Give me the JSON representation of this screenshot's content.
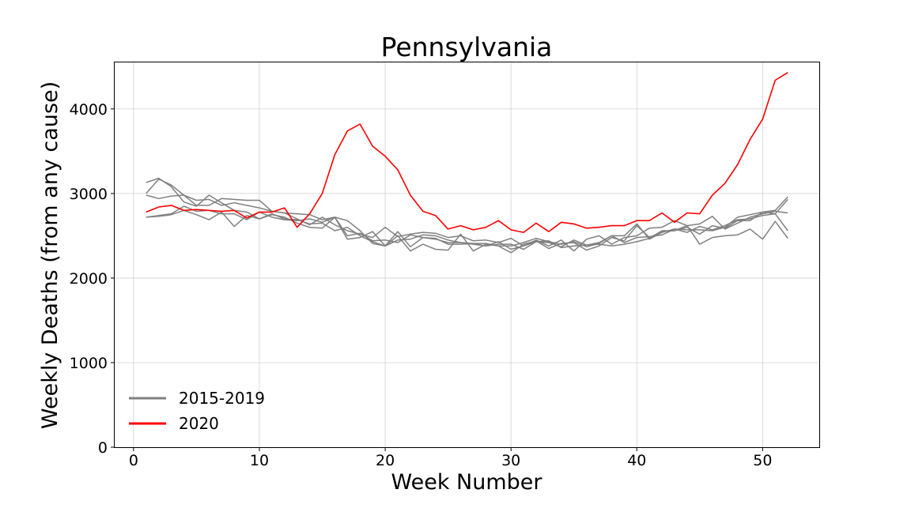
{
  "chart_data": {
    "type": "line",
    "title": "Pennsylvania",
    "xlabel": "Week Number",
    "ylabel": "Weekly Deaths (from any cause)",
    "xlim": [
      -1.5,
      54.5
    ],
    "ylim": [
      0,
      4550
    ],
    "xticks": [
      0,
      10,
      20,
      30,
      40,
      50
    ],
    "yticks": [
      0,
      1000,
      2000,
      3000,
      4000
    ],
    "grid": true,
    "legend_position": "lower-left",
    "legend": [
      {
        "label": "2015-2019",
        "color": "#808080"
      },
      {
        "label": "2020",
        "color": "#ff0000"
      }
    ],
    "weeks": [
      1,
      2,
      3,
      4,
      5,
      6,
      7,
      8,
      9,
      10,
      11,
      12,
      13,
      14,
      15,
      16,
      17,
      18,
      19,
      20,
      21,
      22,
      23,
      24,
      25,
      26,
      27,
      28,
      29,
      30,
      31,
      32,
      33,
      34,
      35,
      36,
      37,
      38,
      39,
      40,
      41,
      42,
      43,
      44,
      45,
      46,
      47,
      48,
      49,
      50,
      51,
      52
    ],
    "series": [
      {
        "legend_label": "2015-2019",
        "color": "#808080",
        "values": [
          3130,
          3180,
          3080,
          2900,
          2850,
          2980,
          2890,
          2800,
          2780,
          2700,
          2750,
          2720,
          2650,
          2600,
          2590,
          2720,
          2460,
          2480,
          2550,
          2380,
          2500,
          2320,
          2400,
          2340,
          2330,
          2520,
          2320,
          2400,
          2380,
          2300,
          2400,
          2440,
          2350,
          2410,
          2420,
          2330,
          2380,
          2480,
          2440,
          2620,
          2480,
          2550,
          2560,
          2620,
          2400,
          2480,
          2500,
          2510,
          2580,
          2460,
          2670,
          2470
        ]
      },
      {
        "legend_label": "2015-2019",
        "color": "#808080",
        "values": [
          2980,
          2940,
          2970,
          2980,
          2920,
          2930,
          2860,
          2890,
          2860,
          2830,
          2790,
          2770,
          2760,
          2750,
          2690,
          2720,
          2680,
          2560,
          2410,
          2380,
          2550,
          2370,
          2480,
          2460,
          2420,
          2420,
          2400,
          2380,
          2430,
          2340,
          2380,
          2430,
          2420,
          2370,
          2450,
          2390,
          2400,
          2380,
          2400,
          2430,
          2470,
          2560,
          2560,
          2600,
          2520,
          2620,
          2590,
          2680,
          2680,
          2780,
          2760,
          2560
        ]
      },
      {
        "legend_label": "2015-2019",
        "color": "#808080",
        "values": [
          2720,
          2730,
          2750,
          2800,
          2750,
          2690,
          2780,
          2610,
          2740,
          2700,
          2760,
          2700,
          2690,
          2640,
          2650,
          2560,
          2600,
          2500,
          2430,
          2380,
          2450,
          2460,
          2510,
          2500,
          2450,
          2420,
          2410,
          2410,
          2380,
          2380,
          2420,
          2470,
          2430,
          2400,
          2430,
          2370,
          2410,
          2500,
          2420,
          2480,
          2490,
          2510,
          2580,
          2540,
          2610,
          2570,
          2620,
          2690,
          2700,
          2740,
          2760,
          2930
        ]
      },
      {
        "legend_label": "2015-2019",
        "color": "#808080",
        "values": [
          2720,
          2740,
          2760,
          2850,
          2790,
          2800,
          2760,
          2760,
          2690,
          2780,
          2720,
          2690,
          2680,
          2700,
          2660,
          2720,
          2500,
          2530,
          2440,
          2450,
          2420,
          2510,
          2480,
          2470,
          2400,
          2400,
          2410,
          2380,
          2400,
          2400,
          2340,
          2430,
          2440,
          2360,
          2380,
          2390,
          2420,
          2500,
          2500,
          2640,
          2460,
          2540,
          2580,
          2570,
          2570,
          2560,
          2600,
          2720,
          2750,
          2780,
          2800,
          2960
        ]
      },
      {
        "legend_label": "2015-2019",
        "color": "#808080",
        "values": [
          3000,
          3170,
          3100,
          2980,
          2860,
          2860,
          2940,
          2930,
          2920,
          2920,
          2790,
          2770,
          2700,
          2630,
          2720,
          2630,
          2560,
          2520,
          2480,
          2600,
          2490,
          2520,
          2540,
          2530,
          2480,
          2500,
          2440,
          2450,
          2420,
          2470,
          2380,
          2450,
          2380,
          2450,
          2320,
          2460,
          2500,
          2400,
          2480,
          2500,
          2590,
          2600,
          2680,
          2620,
          2640,
          2730,
          2580,
          2650,
          2720,
          2760,
          2790,
          2770
        ]
      },
      {
        "legend_label": "2020",
        "color": "#ff0000",
        "values": [
          2780,
          2840,
          2860,
          2800,
          2810,
          2800,
          2790,
          2800,
          2710,
          2780,
          2780,
          2830,
          2600,
          2760,
          3000,
          3460,
          3740,
          3820,
          3560,
          3440,
          3280,
          2980,
          2790,
          2740,
          2580,
          2620,
          2570,
          2600,
          2680,
          2570,
          2540,
          2650,
          2550,
          2660,
          2640,
          2590,
          2600,
          2620,
          2620,
          2680,
          2680,
          2770,
          2660,
          2770,
          2760,
          2980,
          3120,
          3340,
          3640,
          3880,
          4340,
          4430
        ]
      }
    ]
  }
}
